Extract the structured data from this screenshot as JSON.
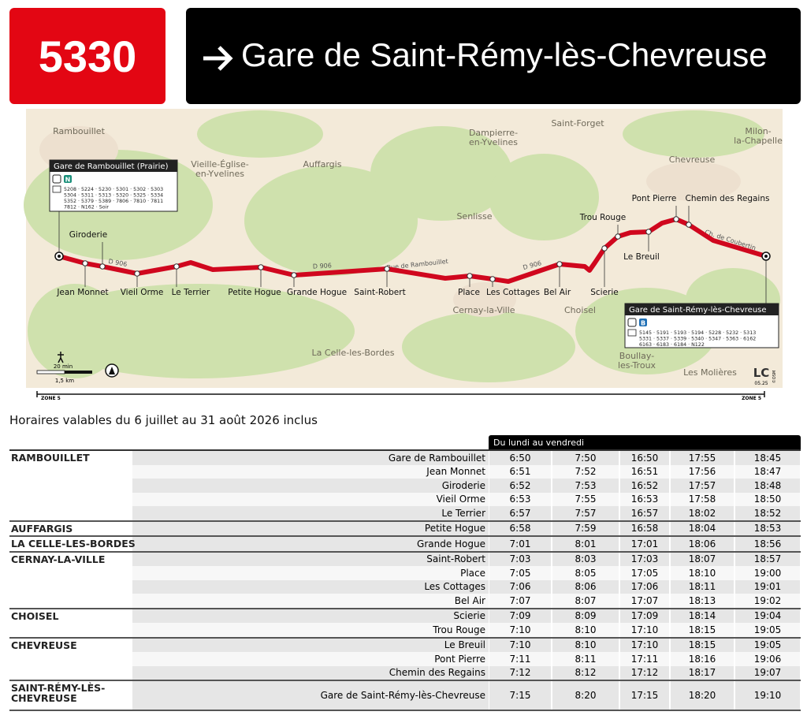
{
  "header": {
    "route": "5330",
    "destination": "Gare de Saint-Rémy-lès-Chevreuse"
  },
  "map": {
    "places": [
      [
        "Rambouillet"
      ],
      [
        "Vieille-Église-",
        "en-Yvelines"
      ],
      [
        "Auffargis"
      ],
      [
        "Dampierre-",
        "en-Yvelines"
      ],
      [
        "Saint-Forget"
      ],
      [
        "Milon-",
        "la-Chapelle"
      ],
      [
        "Chevreuse"
      ],
      [
        "Senlisse"
      ],
      [
        "Cernay-la-Ville"
      ],
      [
        "Choisel"
      ],
      [
        "La Celle-les-Bordes"
      ],
      [
        "Boullay-",
        "les-Troux"
      ],
      [
        "Les Molières"
      ]
    ],
    "roads": [
      "D 906",
      "D 906",
      "Rue de Rambouillet",
      "D 906",
      "Ch. de Coubertin"
    ],
    "stops": [
      "Jean Monnet",
      "Giroderie",
      "Vieil Orme",
      "Le Terrier",
      "Petite Hogue",
      "Grande Hogue",
      "Saint-Robert",
      "Place",
      "Les Cottages",
      "Bel Air",
      "Scierie",
      "Trou Rouge",
      "Le Breuil",
      "Pont Pierre",
      "Chemin des Regains"
    ],
    "terminals": [
      {
        "name": "Gare de Rambouillet (Prairie)",
        "badge": "N",
        "lines": [
          "5208 · 5224 · 5230 · 5301 · 5302 · 5303",
          "5304 · 5311 · 5313 · 5320 · 5325 · 5334",
          "5352 · 5379 · 5389 · 7806 · 7810 · 7811",
          "7812 · N162 · Soir"
        ]
      },
      {
        "name": "Gare de Saint-Rémy-lès-Chevreuse",
        "badge": "B",
        "lines": [
          "5145 · 5191 · 5193 · 5194 · 5228 · 5232 · 5313",
          "5331 · 5337 · 5339 · 5340 · 5347 · 5363 · 6162",
          "6163 · 6183 · 6184 · N122"
        ]
      }
    ],
    "scale": {
      "time": "20 min",
      "distance": "1,5 km"
    },
    "zones": [
      "ZONE 5",
      "ZONE 5"
    ],
    "credits": {
      "logo": "LC",
      "date": "05.25",
      "osm": "©OSM"
    }
  },
  "validity": "Horaires valables du 6 juillet au 31 août 2026 inclus",
  "table": {
    "day_header": "Du lundi au vendredi",
    "groups": [
      {
        "commune": [
          "RAMBOUILLET"
        ],
        "rows": [
          {
            "stop": "Gare de Rambouillet",
            "times": [
              "6:50",
              "7:50",
              "16:50",
              "17:55",
              "18:45"
            ]
          },
          {
            "stop": "Jean Monnet",
            "times": [
              "6:51",
              "7:52",
              "16:51",
              "17:56",
              "18:47"
            ]
          },
          {
            "stop": "Giroderie",
            "times": [
              "6:52",
              "7:53",
              "16:52",
              "17:57",
              "18:48"
            ]
          },
          {
            "stop": "Vieil Orme",
            "times": [
              "6:53",
              "7:55",
              "16:53",
              "17:58",
              "18:50"
            ]
          },
          {
            "stop": "Le Terrier",
            "times": [
              "6:57",
              "7:57",
              "16:57",
              "18:02",
              "18:52"
            ]
          }
        ]
      },
      {
        "commune": [
          "AUFFARGIS"
        ],
        "rows": [
          {
            "stop": "Petite Hogue",
            "times": [
              "6:58",
              "7:59",
              "16:58",
              "18:04",
              "18:53"
            ]
          }
        ]
      },
      {
        "commune": [
          "LA CELLE-LES-BORDES"
        ],
        "rows": [
          {
            "stop": "Grande Hogue",
            "times": [
              "7:01",
              "8:01",
              "17:01",
              "18:06",
              "18:56"
            ]
          }
        ]
      },
      {
        "commune": [
          "CERNAY-LA-VILLE"
        ],
        "rows": [
          {
            "stop": "Saint-Robert",
            "times": [
              "7:03",
              "8:03",
              "17:03",
              "18:07",
              "18:57"
            ]
          },
          {
            "stop": "Place",
            "times": [
              "7:05",
              "8:05",
              "17:05",
              "18:10",
              "19:00"
            ]
          },
          {
            "stop": "Les Cottages",
            "times": [
              "7:06",
              "8:06",
              "17:06",
              "18:11",
              "19:01"
            ]
          },
          {
            "stop": "Bel Air",
            "times": [
              "7:07",
              "8:07",
              "17:07",
              "18:13",
              "19:02"
            ]
          }
        ]
      },
      {
        "commune": [
          "CHOISEL"
        ],
        "rows": [
          {
            "stop": "Scierie",
            "times": [
              "7:09",
              "8:09",
              "17:09",
              "18:14",
              "19:04"
            ]
          },
          {
            "stop": "Trou Rouge",
            "times": [
              "7:10",
              "8:10",
              "17:10",
              "18:15",
              "19:05"
            ]
          }
        ]
      },
      {
        "commune": [
          "CHEVREUSE"
        ],
        "rows": [
          {
            "stop": "Le Breuil",
            "times": [
              "7:10",
              "8:10",
              "17:10",
              "18:15",
              "19:05"
            ]
          },
          {
            "stop": "Pont Pierre",
            "times": [
              "7:11",
              "8:11",
              "17:11",
              "18:16",
              "19:06"
            ]
          },
          {
            "stop": "Chemin des Regains",
            "times": [
              "7:12",
              "8:12",
              "17:12",
              "18:17",
              "19:07"
            ]
          }
        ]
      },
      {
        "commune": [
          "SAINT-RÉMY-LÈS-",
          "CHEVREUSE"
        ],
        "rows": [
          {
            "stop": "Gare de Saint-Rémy-lès-Chevreuse",
            "times": [
              "7:15",
              "8:20",
              "17:15",
              "18:20",
              "19:10"
            ]
          }
        ]
      }
    ]
  }
}
